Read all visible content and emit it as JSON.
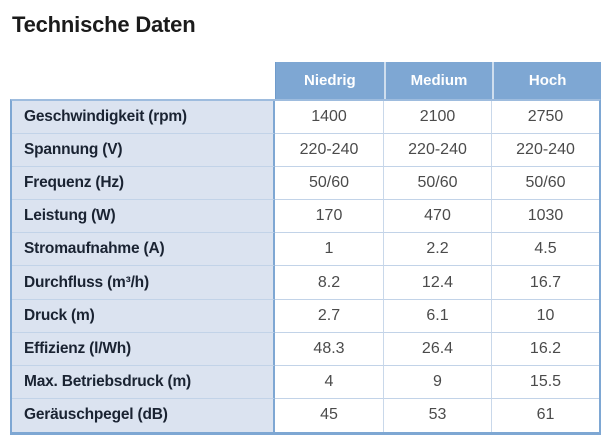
{
  "page_title": "Technische Daten",
  "colors": {
    "header_bg": "#7ea7d3",
    "header_text": "#ffffff",
    "label_bg": "#dbe3f0",
    "label_text": "#1a2332",
    "value_text": "#4b4b4b",
    "row_separator": "#c2d3e8",
    "outer_border": "#7ea7d3",
    "title_text": "#1b1b1b"
  },
  "table": {
    "columns": [
      "Niedrig",
      "Medium",
      "Hoch"
    ],
    "rows": [
      {
        "label": "Geschwindigkeit (rpm)",
        "values": [
          "1400",
          "2100",
          "2750"
        ]
      },
      {
        "label": "Spannung (V)",
        "values": [
          "220-240",
          "220-240",
          "220-240"
        ]
      },
      {
        "label": "Frequenz (Hz)",
        "values": [
          "50/60",
          "50/60",
          "50/60"
        ]
      },
      {
        "label": "Leistung (W)",
        "values": [
          "170",
          "470",
          "1030"
        ]
      },
      {
        "label": "Stromaufnahme (A)",
        "values": [
          "1",
          "2.2",
          "4.5"
        ]
      },
      {
        "label": "Durchfluss (m³/h)",
        "values": [
          "8.2",
          "12.4",
          "16.7"
        ]
      },
      {
        "label": "Druck (m)",
        "values": [
          "2.7",
          "6.1",
          "10"
        ]
      },
      {
        "label": "Effizienz (l/Wh)",
        "values": [
          "48.3",
          "26.4",
          "16.2"
        ]
      },
      {
        "label": "Max. Betriebsdruck (m)",
        "values": [
          "4",
          "9",
          "15.5"
        ]
      },
      {
        "label": "Geräuschpegel (dB)",
        "values": [
          "45",
          "53",
          "61"
        ]
      }
    ]
  }
}
